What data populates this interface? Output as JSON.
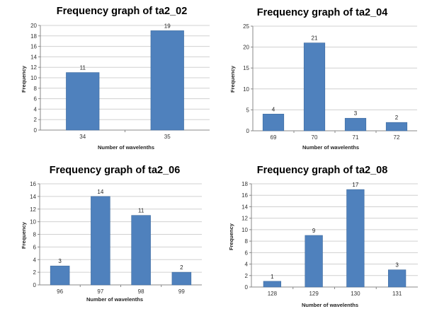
{
  "chart_data": [
    {
      "type": "bar",
      "title": "Frequency graph of ta2_02",
      "xlabel": "Number of wavelenths",
      "ylabel": "Frequency",
      "categories": [
        "34",
        "35"
      ],
      "values": [
        11,
        19
      ],
      "data_labels": [
        "11",
        "19"
      ],
      "ylim": [
        0,
        20
      ],
      "ytick_step": 2,
      "grid": true,
      "bar_color": "#4f81bd"
    },
    {
      "type": "bar",
      "title": "Frequency graph of ta2_04",
      "xlabel": "Number of wavelenths",
      "ylabel": "Frequency",
      "categories": [
        "69",
        "70",
        "71",
        "72"
      ],
      "values": [
        4,
        21,
        3,
        2
      ],
      "data_labels": [
        "4",
        "21",
        "3",
        "2"
      ],
      "ylim": [
        0,
        25
      ],
      "ytick_step": 5,
      "grid": true,
      "bar_color": "#4f81bd"
    },
    {
      "type": "bar",
      "title": "Frequency graph of ta2_06",
      "xlabel": "Number of wavelenths",
      "ylabel": "Frequency",
      "categories": [
        "96",
        "97",
        "98",
        "99"
      ],
      "values": [
        3,
        14,
        11,
        2
      ],
      "data_labels": [
        "3",
        "14",
        "11",
        "2"
      ],
      "ylim": [
        0,
        16
      ],
      "ytick_step": 2,
      "grid": true,
      "bar_color": "#4f81bd"
    },
    {
      "type": "bar",
      "title": "Frequency graph of ta2_08",
      "xlabel": "Number of wavelenths",
      "ylabel": "Frequency",
      "categories": [
        "128",
        "129",
        "130",
        "131"
      ],
      "values": [
        1,
        9,
        17,
        3
      ],
      "data_labels": [
        "1",
        "9",
        "17",
        "3"
      ],
      "ylim": [
        0,
        18
      ],
      "ytick_step": 2,
      "grid": true,
      "bar_color": "#4f81bd"
    }
  ]
}
